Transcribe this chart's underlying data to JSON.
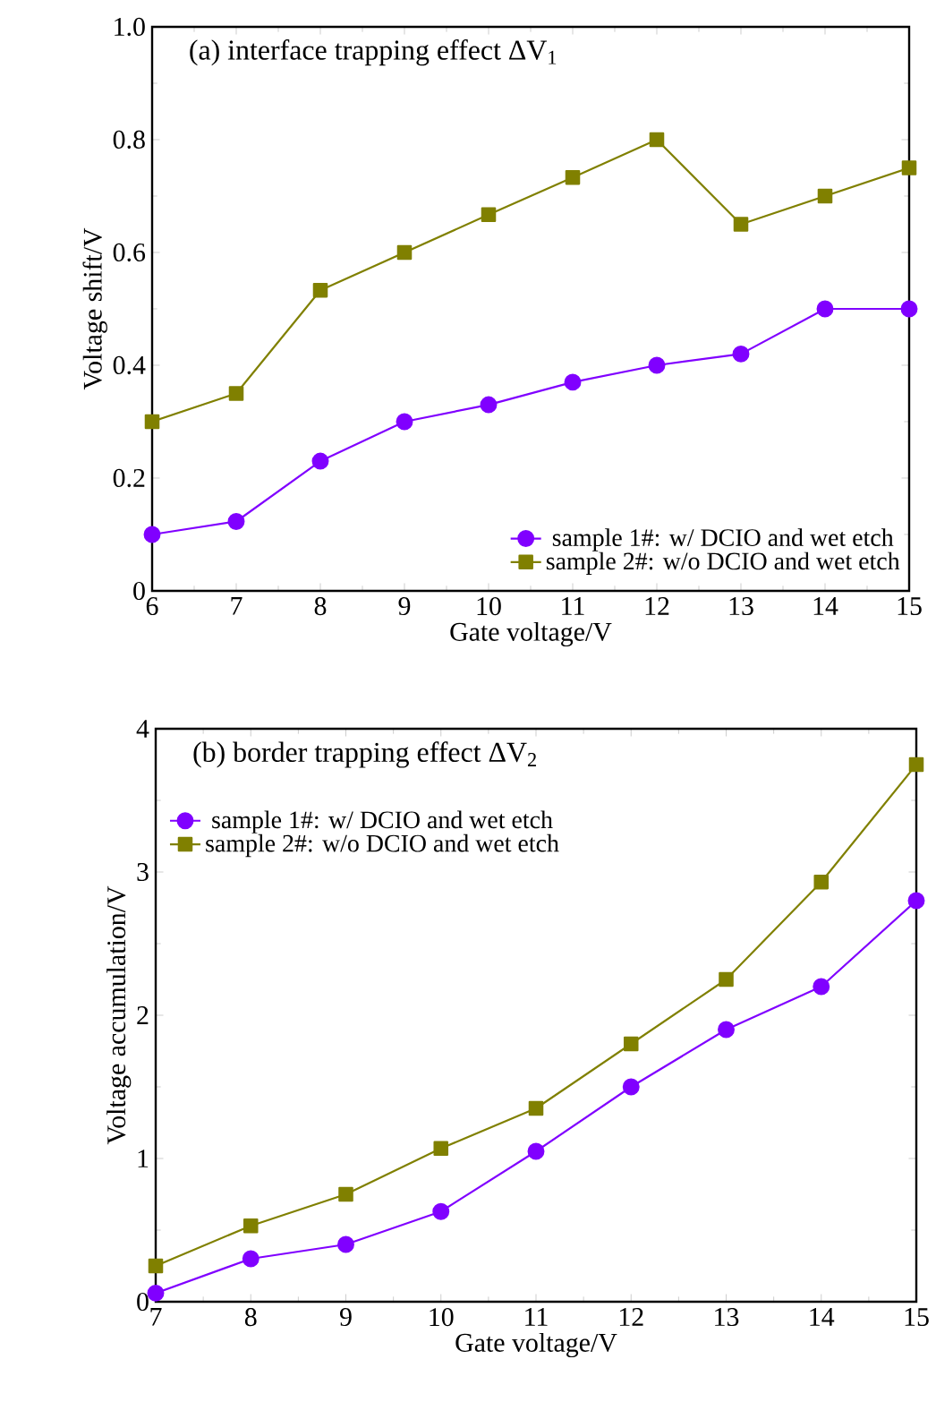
{
  "chart_data": [
    {
      "type": "line",
      "title": "(a) interface trapping effect ΔV$_{1}$",
      "xlabel": "Gate voltage/V",
      "ylabel": "Voltage shift/V",
      "x": [
        6,
        7,
        8,
        9,
        10,
        11,
        12,
        13,
        14,
        15
      ],
      "series": [
        {
          "name": "sample 1#: w/ DCIO and wet etch",
          "color": "#8000ff",
          "marker": "circle",
          "values": [
            0.1,
            0.123,
            0.23,
            0.3,
            0.33,
            0.37,
            0.4,
            0.42,
            0.5,
            0.5
          ]
        },
        {
          "name": "sample 2#: w/o DCIO and wet etch",
          "color": "#808000",
          "marker": "square",
          "values": [
            0.3,
            0.35,
            0.533,
            0.6,
            0.667,
            0.733,
            0.8,
            0.65,
            0.7,
            0.75
          ]
        }
      ],
      "xlim": [
        6,
        15
      ],
      "xticks": [
        6,
        7,
        8,
        9,
        10,
        11,
        12,
        13,
        14,
        15
      ],
      "ylim": [
        0,
        1
      ],
      "yticks": [
        0,
        0.2,
        0.4,
        0.6,
        0.8,
        {
          "value": 1,
          "label": "1.0"
        }
      ],
      "legend": "bottom right",
      "line_style": "solid"
    },
    {
      "type": "line",
      "title": "(b) border trapping effect ΔV$_{2}$",
      "xlabel": "Gate voltage/V",
      "ylabel": "Voltage accumulation/V",
      "x": [
        7,
        8,
        9,
        10,
        11,
        12,
        13,
        14,
        15
      ],
      "series": [
        {
          "name": "sample 1#: w/ DCIO and wet etch",
          "color": "#8000ff",
          "marker": "circle",
          "values": [
            0.06,
            0.3,
            0.4,
            0.63,
            1.05,
            1.5,
            1.9,
            2.2,
            2.8
          ]
        },
        {
          "name": "sample 2#: w/o DCIO and wet etch",
          "color": "#808000",
          "marker": "square",
          "values": [
            0.25,
            0.53,
            0.75,
            1.07,
            1.35,
            1.8,
            2.25,
            2.93,
            3.75
          ]
        }
      ],
      "xlim": [
        7,
        15
      ],
      "xticks": [
        7,
        8,
        9,
        10,
        11,
        12,
        13,
        14,
        15
      ],
      "ylim": [
        0,
        4
      ],
      "yticks": [
        0,
        1,
        2,
        3,
        4
      ],
      "legend": "top left",
      "line_style": "solid"
    }
  ]
}
